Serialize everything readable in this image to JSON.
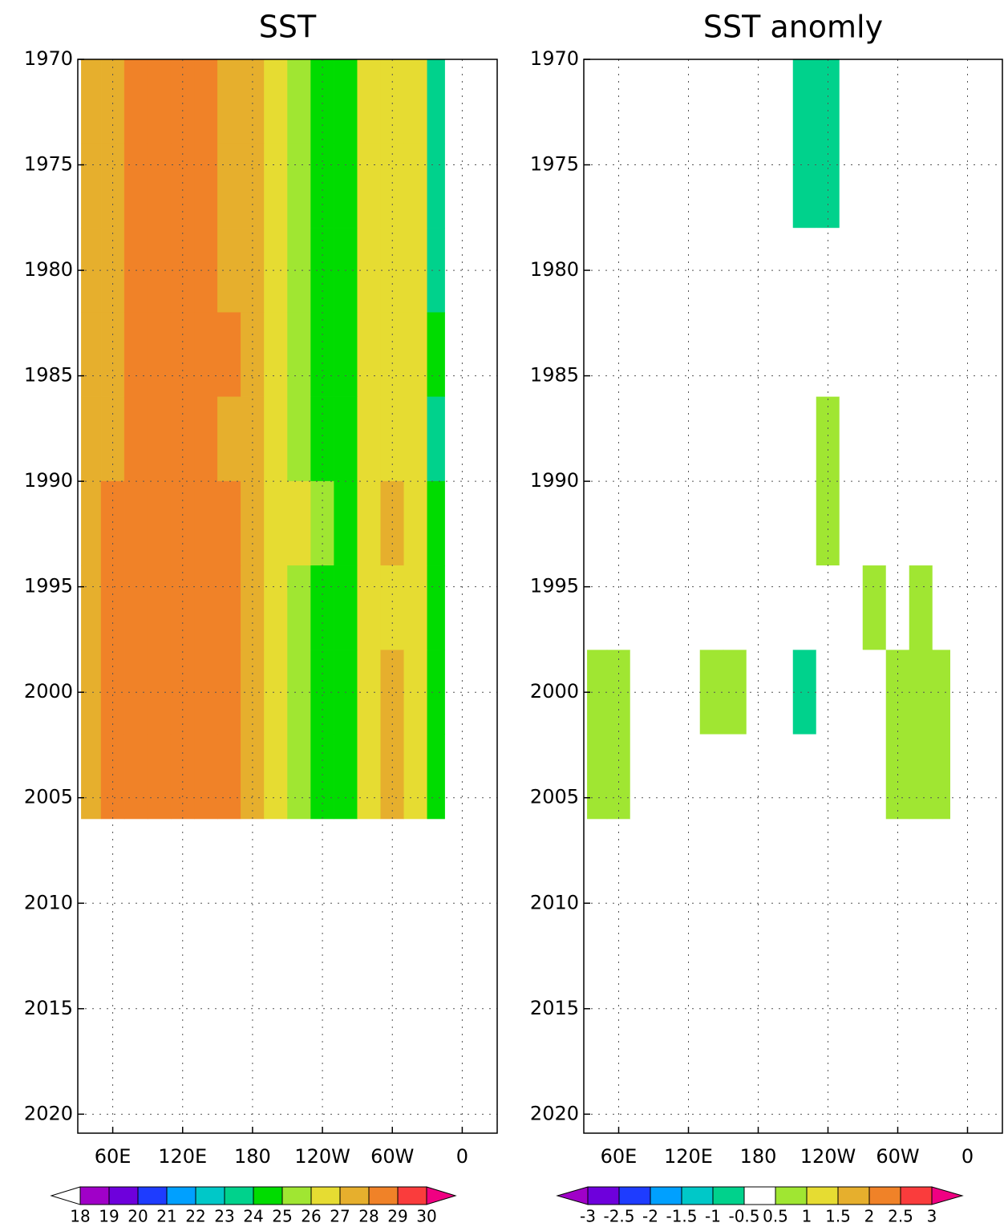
{
  "chart_data": [
    {
      "type": "heatmap",
      "title": "SST",
      "lon_bins": [
        33,
        50,
        70,
        90,
        110,
        130,
        150,
        170,
        190,
        210,
        230,
        250,
        270,
        290,
        310,
        330,
        345
      ],
      "year_bins": [
        1970,
        1974,
        1978,
        1982,
        1986,
        1990,
        1994,
        1998,
        2002,
        2006
      ],
      "z": [
        [
          27.4,
          27.7,
          28.2,
          28.5,
          28.6,
          28.3,
          27.7,
          27.0,
          26.2,
          25.2,
          24.3,
          24.1,
          26.4,
          26.8,
          26.0,
          23.8
        ],
        [
          27.5,
          27.8,
          28.3,
          28.6,
          28.7,
          28.4,
          27.8,
          27.1,
          26.3,
          25.3,
          24.4,
          24.2,
          26.5,
          26.9,
          26.1,
          23.9
        ],
        [
          27.6,
          27.9,
          28.3,
          28.5,
          28.6,
          28.4,
          27.9,
          27.3,
          26.6,
          25.6,
          24.7,
          24.5,
          26.6,
          26.8,
          26.0,
          23.7
        ],
        [
          27.5,
          27.8,
          28.2,
          28.6,
          28.7,
          28.5,
          28.0,
          27.4,
          26.8,
          25.9,
          24.9,
          24.6,
          26.6,
          26.9,
          26.2,
          24.0
        ],
        [
          27.6,
          27.9,
          28.3,
          28.5,
          28.6,
          28.3,
          27.8,
          27.2,
          26.5,
          25.5,
          24.6,
          24.4,
          26.5,
          26.8,
          26.1,
          23.9
        ],
        [
          27.7,
          28.0,
          28.4,
          28.6,
          28.7,
          28.5,
          28.0,
          27.5,
          26.9,
          26.0,
          25.0,
          24.7,
          26.7,
          27.0,
          26.2,
          24.1
        ],
        [
          27.8,
          28.1,
          28.4,
          28.7,
          28.8,
          28.5,
          28.0,
          27.3,
          26.6,
          25.6,
          24.6,
          24.4,
          26.6,
          26.9,
          26.3,
          24.2
        ],
        [
          27.9,
          28.2,
          28.5,
          28.8,
          28.9,
          28.6,
          28.1,
          27.4,
          26.7,
          25.7,
          24.7,
          24.5,
          26.7,
          27.0,
          26.4,
          24.3
        ],
        [
          27.9,
          28.2,
          28.5,
          28.8,
          28.8,
          28.5,
          28.0,
          27.4,
          26.7,
          25.8,
          24.8,
          24.6,
          26.8,
          27.1,
          26.4,
          24.3
        ]
      ],
      "xlim": [
        30,
        390
      ],
      "xticks": [
        {
          "value": 60,
          "label": "60E"
        },
        {
          "value": 120,
          "label": "120E"
        },
        180,
        {
          "value": 240,
          "label": "120W"
        },
        {
          "value": 300,
          "label": "60W"
        },
        {
          "value": 360,
          "label": "0"
        }
      ],
      "ylim": [
        2020.9,
        1970
      ],
      "yticks": [
        1970,
        1975,
        1980,
        1985,
        1990,
        1995,
        2000,
        2005,
        2010,
        2015,
        2020
      ],
      "levels": [
        18,
        19,
        20,
        21,
        22,
        23,
        24,
        25,
        26,
        27,
        28,
        29,
        30
      ],
      "colors": [
        "#ffffff",
        "#a000c8",
        "#6e00dc",
        "#1e3cff",
        "#00a0ff",
        "#00c8c8",
        "#00d28c",
        "#00dc00",
        "#a0e632",
        "#e6dc32",
        "#e6af2d",
        "#f08228",
        "#fa3c3c",
        "#f00082"
      ],
      "grid": true
    },
    {
      "type": "heatmap",
      "title": "SST anomly",
      "lon_bins": [
        33,
        50,
        70,
        90,
        110,
        130,
        150,
        170,
        190,
        210,
        230,
        250,
        270,
        290,
        310,
        330,
        345
      ],
      "year_bins": [
        1970,
        1974,
        1978,
        1982,
        1986,
        1990,
        1994,
        1998,
        2002,
        2006
      ],
      "z": [
        [
          0.1,
          -0.1,
          0.0,
          0.0,
          0.1,
          -0.2,
          -0.1,
          -0.3,
          -0.2,
          -0.6,
          -0.7,
          -0.4,
          -0.2,
          0.0,
          -0.3,
          -0.1
        ],
        [
          0.0,
          0.1,
          -0.1,
          0.0,
          0.0,
          -0.1,
          -0.2,
          -0.3,
          -0.4,
          -0.7,
          -0.8,
          -0.5,
          -0.3,
          -0.1,
          -0.4,
          -0.2
        ],
        [
          -0.1,
          0.0,
          0.0,
          0.1,
          0.0,
          0.0,
          -0.1,
          -0.1,
          0.0,
          -0.1,
          -0.2,
          -0.1,
          0.0,
          0.0,
          -0.1,
          0.0
        ],
        [
          0.0,
          -0.1,
          0.0,
          0.0,
          0.1,
          0.0,
          -0.2,
          0.0,
          0.1,
          0.2,
          0.3,
          0.1,
          0.0,
          0.1,
          0.0,
          0.1
        ],
        [
          0.1,
          0.0,
          0.2,
          0.1,
          0.0,
          0.2,
          0.1,
          0.3,
          0.2,
          0.4,
          0.6,
          0.2,
          0.1,
          0.0,
          0.2,
          0.1
        ],
        [
          0.0,
          0.1,
          0.0,
          0.2,
          0.1,
          0.1,
          0.2,
          0.1,
          0.3,
          0.4,
          0.7,
          0.3,
          0.2,
          0.1,
          0.1,
          0.2
        ],
        [
          0.2,
          0.3,
          0.1,
          0.2,
          0.3,
          0.4,
          0.3,
          0.2,
          0.3,
          0.4,
          0.3,
          0.4,
          0.5,
          0.3,
          0.6,
          0.4
        ],
        [
          0.6,
          0.7,
          0.3,
          0.2,
          0.4,
          0.6,
          0.5,
          0.3,
          0.2,
          -0.6,
          -0.3,
          0.2,
          0.4,
          0.5,
          0.6,
          0.7
        ],
        [
          0.5,
          0.6,
          0.2,
          0.3,
          0.4,
          0.2,
          0.3,
          0.2,
          0.3,
          0.1,
          0.2,
          0.3,
          0.4,
          0.5,
          0.6,
          0.8
        ]
      ],
      "xlim": [
        30,
        390
      ],
      "xticks": [
        {
          "value": 60,
          "label": "60E"
        },
        {
          "value": 120,
          "label": "120E"
        },
        180,
        {
          "value": 240,
          "label": "120W"
        },
        {
          "value": 300,
          "label": "60W"
        },
        {
          "value": 360,
          "label": "0"
        }
      ],
      "ylim": [
        2020.9,
        1970
      ],
      "yticks": [
        1970,
        1975,
        1980,
        1985,
        1990,
        1995,
        2000,
        2005,
        2010,
        2015,
        2020
      ],
      "levels": [
        -3,
        -2.5,
        -2,
        -1.5,
        -1,
        -0.5,
        0.5,
        1,
        1.5,
        2,
        2.5,
        3
      ],
      "colors": [
        "#a000c8",
        "#6e00dc",
        "#1e3cff",
        "#00a0ff",
        "#00c8c8",
        "#00d28c",
        "#ffffff",
        "#a0e632",
        "#e6dc32",
        "#e6af2d",
        "#f08228",
        "#fa3c3c",
        "#f00082"
      ],
      "grid": true
    }
  ]
}
